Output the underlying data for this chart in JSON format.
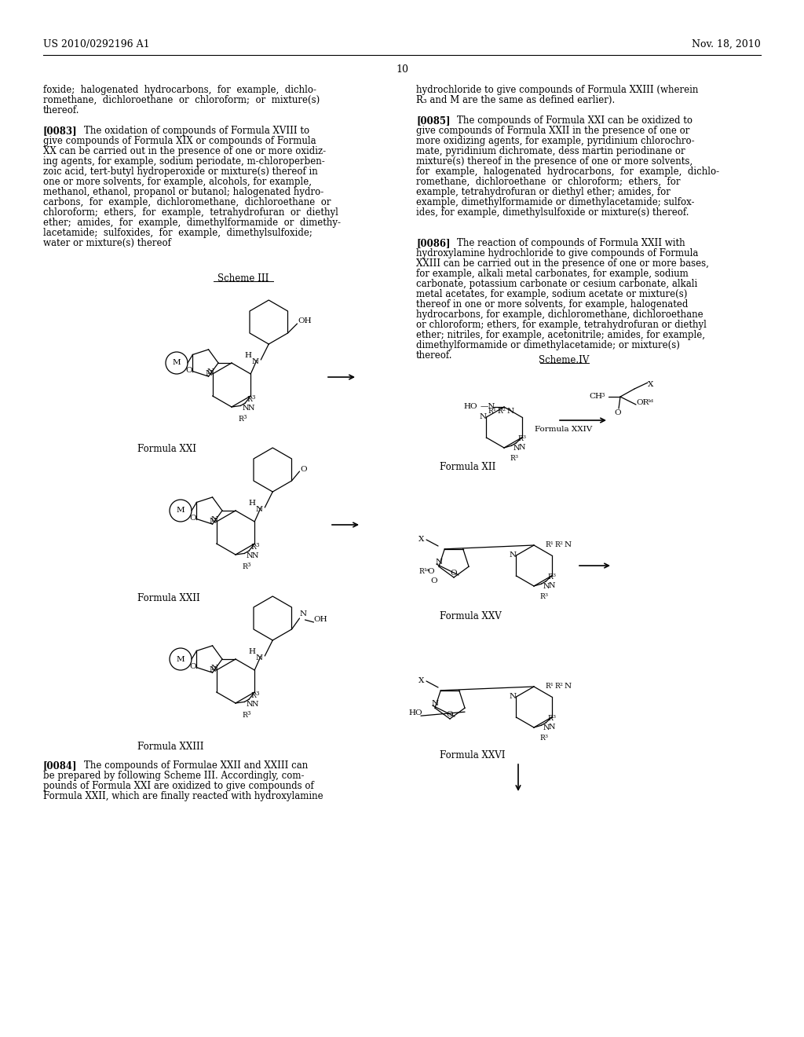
{
  "background_color": "#ffffff",
  "header_left": "US 2010/0292196 A1",
  "header_right": "Nov. 18, 2010",
  "page_number": "10",
  "left_col_lines": [
    [
      "",
      "foxide;  halogenated  hydrocarbons,  for  example,  dichlo-"
    ],
    [
      "",
      "romethane,  dichloroethane  or  chloroform;  or  mixture(s)"
    ],
    [
      "",
      "thereof."
    ],
    [
      "",
      ""
    ],
    [
      "bold",
      "[0083]"
    ],
    [
      "",
      "    The oxidation of compounds of Formula XVIII to"
    ],
    [
      "",
      "give compounds of Formula XIX or compounds of Formula"
    ],
    [
      "",
      "XX can be carried out in the presence of one or more oxidiz-"
    ],
    [
      "",
      "ing agents, for example, sodium periodate, m-chloroperben-"
    ],
    [
      "",
      "zoic acid, tert-butyl hydroperoxide or mixture(s) thereof in"
    ],
    [
      "",
      "one or more solvents, for example, alcohols, for example,"
    ],
    [
      "",
      "methanol, ethanol, propanol or butanol; halogenated hydro-"
    ],
    [
      "",
      "carbons,  for  example,  dichloromethane,  dichloroethane  or"
    ],
    [
      "",
      "chloroform;  ethers,  for  example,  tetrahydrofuran  or  diethyl"
    ],
    [
      "",
      "ether;  amides,  for  example,  dimethylformamide  or  dimethy-"
    ],
    [
      "",
      "lacetamide;  sulfoxides,  for  example,  dimethylsulfoxide;"
    ],
    [
      "",
      "water or mixture(s) thereof"
    ]
  ],
  "right_col_top_lines": [
    "hydrochloride to give compounds of Formula XXIII (wherein",
    "R3 and M are the same as defined earlier).",
    "",
    "[0085]bold    The compounds of Formula XXI can be oxidized to",
    "give compounds of Formula XXII in the presence of one or",
    "more oxidizing agents, for example, pyridinium chlorochro-",
    "mate, pyridinium dichromate, dess martin periodinane or",
    "mixture(s) thereof in the presence of one or more solvents,",
    "for  example,  halogenated  hydrocarbons,  for  example,  dichlo-",
    "romethane,  dichloroethane  or  chloroform;  ethers,  for",
    "example, tetrahydrofuran or diethyl ether; amides, for",
    "example, dimethylformamide or dimethylacetamide; sulfox-",
    "ides, for example, dimethylsulfoxide or mixture(s) thereof."
  ],
  "right_col_mid_lines": [
    "[0086]bold    The reaction of compounds of Formula XXII with",
    "hydroxylamine hydrochloride to give compounds of Formula",
    "XXIII can be carried out in the presence of one or more bases,",
    "for example, alkali metal carbonates, for example, sodium",
    "carbonate, potassium carbonate or cesium carbonate, alkali",
    "metal acetates, for example, sodium acetate or mixture(s)",
    "thereof in one or more solvents, for example, halogenated",
    "hydrocarbons, for example, dichloromethane, dichloroethane",
    "or chloroform; ethers, for example, tetrahydrofuran or diethyl",
    "ether; nitriles, for example, acetonitrile; amides, for example,",
    "dimethylformamide or dimethylacetamide; or mixture(s)",
    "thereof."
  ],
  "bottom_left_lines": [
    "[0084]bold    The compounds of Formulae XXII and XXIII can",
    "be prepared by following Scheme III. Accordingly, com-",
    "pounds of Formula XXI are oxidized to give compounds of",
    "Formula XXII, which are finally reacted with hydroxylamine"
  ]
}
